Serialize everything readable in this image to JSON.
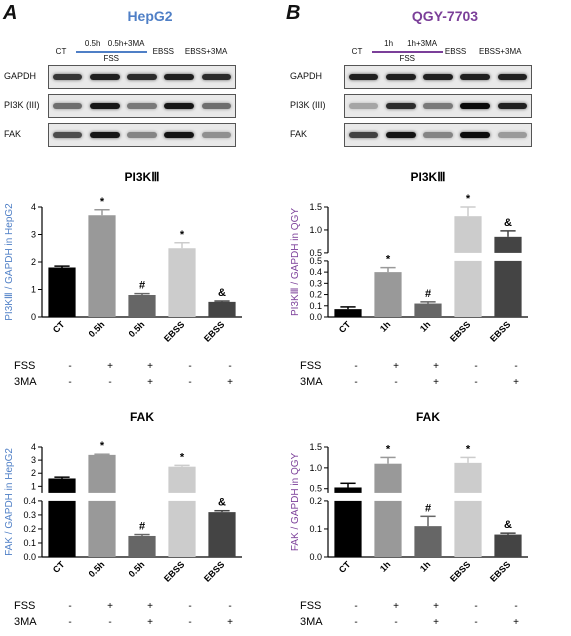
{
  "panels": [
    {
      "letter": "A",
      "cell": "HepG2",
      "title_color": "#4f7fc6",
      "lanes": [
        {
          "text": "CT",
          "fx": 0.07,
          "row": 1
        },
        {
          "text": "0.5h",
          "fx": 0.24,
          "row": 0
        },
        {
          "text": "0.5h+3MA",
          "fx": 0.42,
          "row": 0
        },
        {
          "text": "EBSS",
          "fx": 0.62,
          "row": 1
        },
        {
          "text": "EBSS+3MA",
          "fx": 0.85,
          "row": 1
        }
      ],
      "fss_label": "FSS",
      "blots": [
        {
          "name": "GAPDH",
          "bands": [
            0.8,
            0.9,
            0.85,
            0.9,
            0.85
          ]
        },
        {
          "name": "PI3K (III)",
          "bands": [
            0.55,
            0.95,
            0.5,
            0.95,
            0.55
          ]
        },
        {
          "name": "FAK",
          "bands": [
            0.7,
            0.95,
            0.45,
            0.95,
            0.4
          ]
        }
      ]
    },
    {
      "letter": "B",
      "cell": "QGY-7703",
      "title_color": "#7b3f99",
      "lanes": [
        {
          "text": "CT",
          "fx": 0.07,
          "row": 1
        },
        {
          "text": "1h",
          "fx": 0.24,
          "row": 0
        },
        {
          "text": "1h+3MA",
          "fx": 0.42,
          "row": 0
        },
        {
          "text": "EBSS",
          "fx": 0.6,
          "row": 1
        },
        {
          "text": "EBSS+3MA",
          "fx": 0.84,
          "row": 1
        }
      ],
      "fss_label": "FSS",
      "blots": [
        {
          "name": "GAPDH",
          "bands": [
            0.9,
            0.9,
            0.9,
            0.9,
            0.9
          ]
        },
        {
          "name": "PI3K (III)",
          "bands": [
            0.3,
            0.85,
            0.5,
            1.0,
            0.9
          ]
        },
        {
          "name": "FAK",
          "bands": [
            0.75,
            0.95,
            0.45,
            1.0,
            0.35
          ]
        }
      ]
    }
  ],
  "row_labels": {
    "fss": "FSS",
    "ma": "3MA"
  },
  "chart_data": [
    {
      "type": "bar",
      "title": "PI3KⅢ",
      "ylabel": "PI3KⅢ / GAPDH in HepG2",
      "ylabel_color": "#4f7fc6",
      "categories": [
        "CT",
        "0.5h",
        "0.5h",
        "EBSS",
        "EBSS"
      ],
      "values": [
        1.8,
        3.7,
        0.8,
        2.5,
        0.55
      ],
      "errors": [
        0.05,
        0.2,
        0.05,
        0.2,
        0.03
      ],
      "marks": [
        "",
        "*",
        "#",
        "*",
        "&"
      ],
      "colors": [
        "#000000",
        "#999999",
        "#666666",
        "#cccccc",
        "#444444"
      ],
      "fss": [
        "-",
        "+",
        "+",
        "-",
        "-"
      ],
      "ma": [
        "-",
        "-",
        "+",
        "-",
        "+"
      ],
      "segments": [
        {
          "range": [
            0,
            4
          ],
          "ticks": [
            "0",
            "1",
            "2",
            "3",
            "4"
          ]
        }
      ]
    },
    {
      "type": "bar",
      "title": "PI3KⅢ",
      "ylabel": "PI3KⅢ / GAPDH in QGY",
      "ylabel_color": "#7b3f99",
      "categories": [
        "CT",
        "1h",
        "1h",
        "EBSS",
        "EBSS"
      ],
      "values": [
        0.07,
        0.4,
        0.12,
        1.3,
        0.85
      ],
      "errors": [
        0.02,
        0.04,
        0.015,
        0.3,
        0.13
      ],
      "marks": [
        "",
        "*",
        "#",
        "*",
        "&"
      ],
      "colors": [
        "#000000",
        "#999999",
        "#666666",
        "#cccccc",
        "#444444"
      ],
      "fss": [
        "-",
        "+",
        "+",
        "-",
        "-"
      ],
      "ma": [
        "-",
        "-",
        "+",
        "-",
        "+"
      ],
      "segments": [
        {
          "range": [
            0,
            0.5
          ],
          "ticks": [
            "0.0",
            "0.1",
            "0.2",
            "0.3",
            "0.4",
            "0.5"
          ]
        },
        {
          "range": [
            0.5,
            1.5
          ],
          "ticks": [
            "0.5",
            "1.0",
            "1.5"
          ]
        }
      ]
    },
    {
      "type": "bar",
      "title": "FAK",
      "ylabel": "FAK / GAPDH in HepG2",
      "ylabel_color": "#4f7fc6",
      "categories": [
        "CT",
        "0.5h",
        "0.5h",
        "EBSS",
        "EBSS"
      ],
      "values": [
        1.6,
        3.4,
        0.15,
        2.5,
        0.32
      ],
      "errors": [
        0.1,
        0.05,
        0.01,
        0.1,
        0.01
      ],
      "marks": [
        "",
        "*",
        "#",
        "*",
        "&"
      ],
      "colors": [
        "#000000",
        "#999999",
        "#666666",
        "#cccccc",
        "#444444"
      ],
      "fss": [
        "-",
        "+",
        "+",
        "-",
        "-"
      ],
      "ma": [
        "-",
        "-",
        "+",
        "-",
        "+"
      ],
      "segments": [
        {
          "range": [
            0,
            0.4
          ],
          "ticks": [
            "0.0",
            "0.1",
            "0.2",
            "0.3",
            "0.4"
          ]
        },
        {
          "range": [
            0.5,
            4
          ],
          "ticks": [
            "1",
            "2",
            "3",
            "4"
          ]
        }
      ]
    },
    {
      "type": "bar",
      "title": "FAK",
      "ylabel": "FAK / GAPDH in QGY",
      "ylabel_color": "#7b3f99",
      "categories": [
        "CT",
        "1h",
        "1h",
        "EBSS",
        "EBSS"
      ],
      "values": [
        0.53,
        1.1,
        0.11,
        1.12,
        0.08
      ],
      "errors": [
        0.1,
        0.15,
        0.035,
        0.13,
        0.005
      ],
      "marks": [
        "",
        "*",
        "#",
        "*",
        "&"
      ],
      "colors": [
        "#000000",
        "#999999",
        "#666666",
        "#cccccc",
        "#444444"
      ],
      "fss": [
        "-",
        "+",
        "+",
        "-",
        "-"
      ],
      "ma": [
        "-",
        "-",
        "+",
        "-",
        "+"
      ],
      "segments": [
        {
          "range": [
            0,
            0.2
          ],
          "ticks": [
            "0.0",
            "0.1",
            "0.2"
          ]
        },
        {
          "range": [
            0.4,
            1.5
          ],
          "ticks": [
            "0.5",
            "1.0",
            "1.5"
          ]
        }
      ]
    }
  ]
}
